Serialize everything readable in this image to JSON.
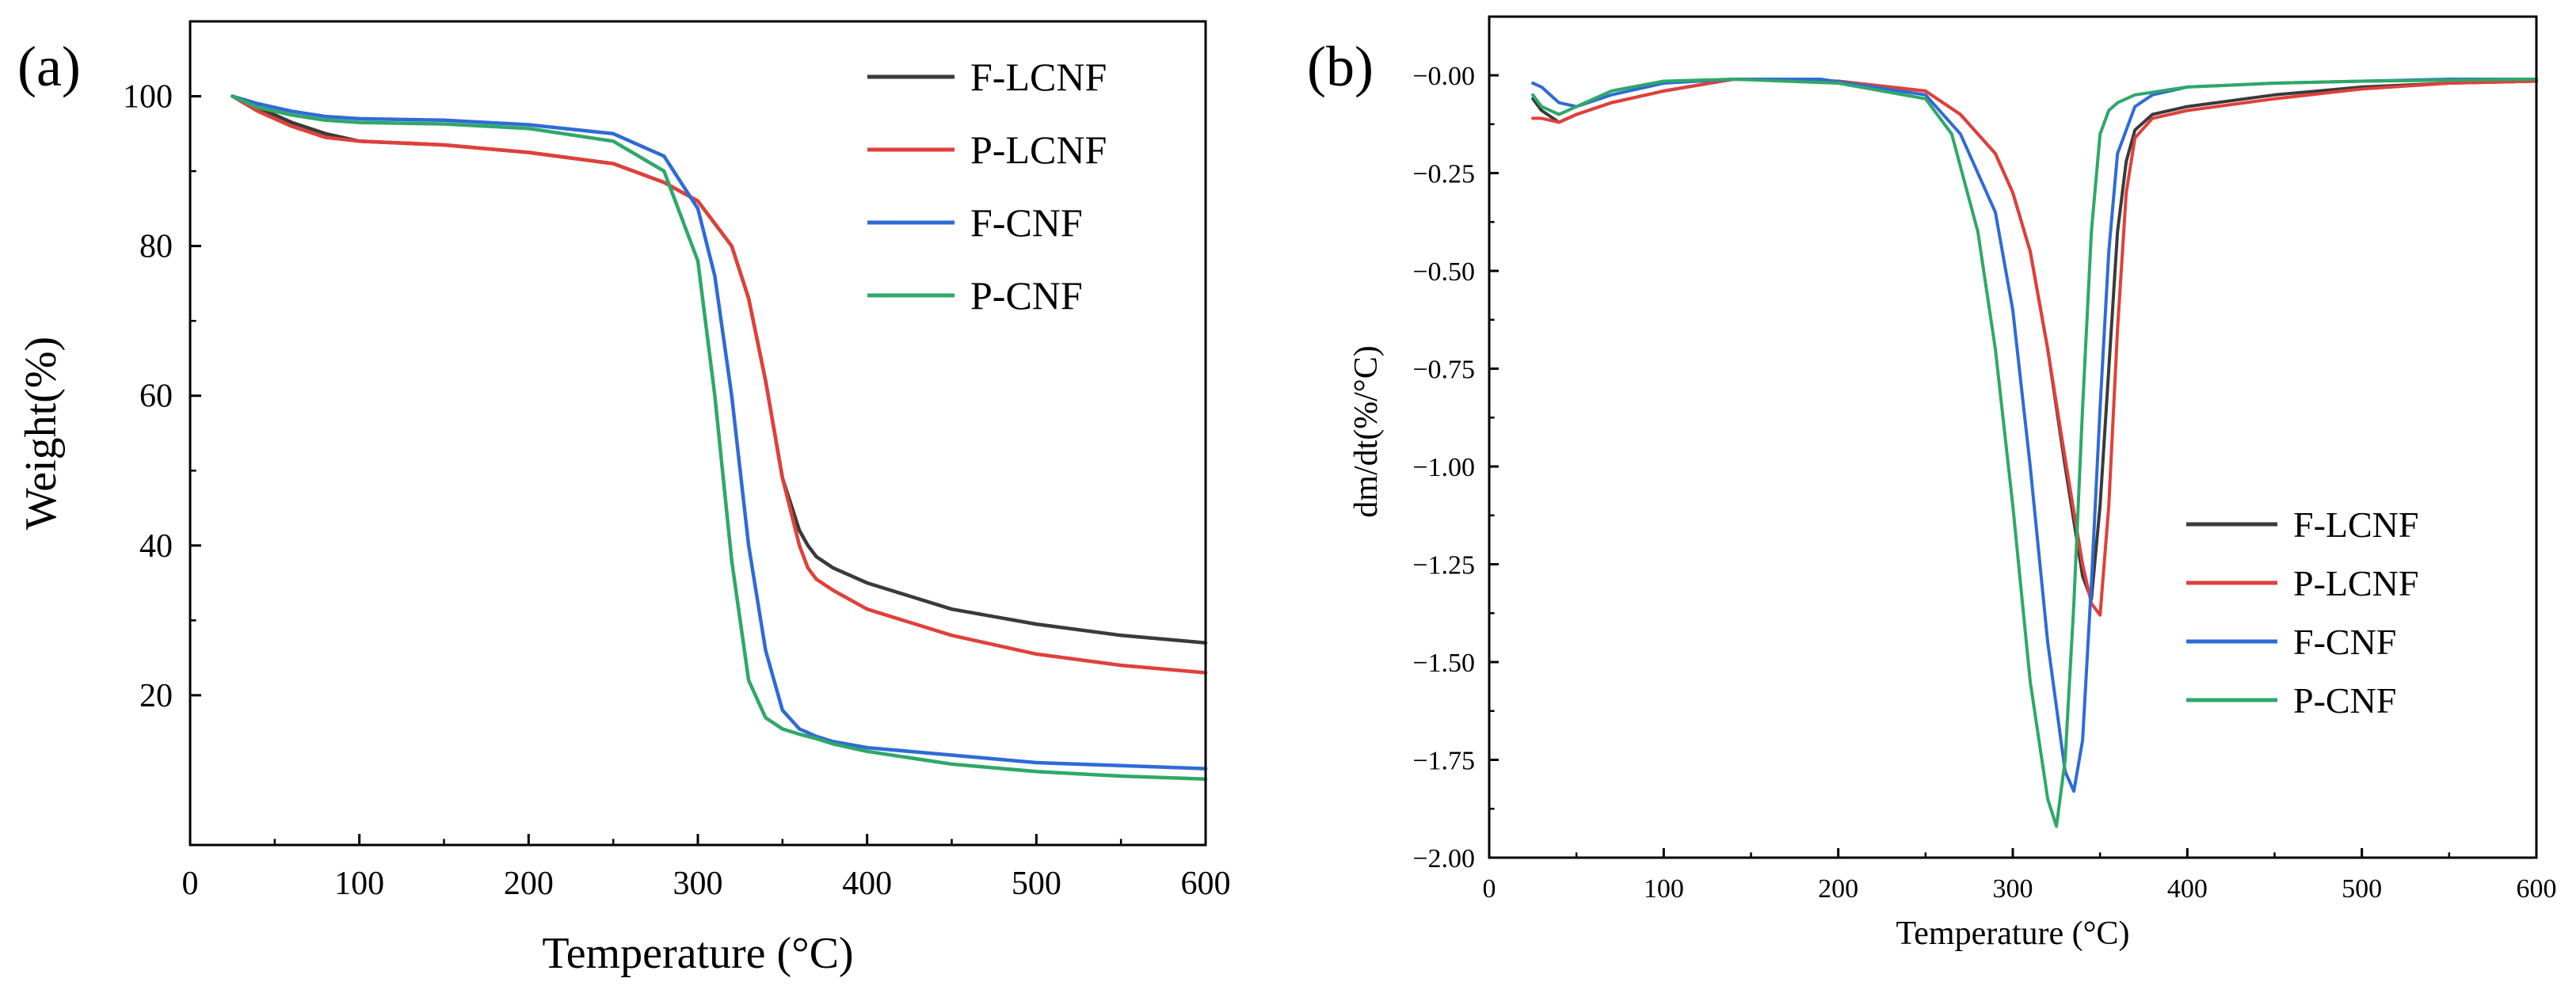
{
  "chart_data": [
    {
      "type": "line",
      "panel_label": "(a)",
      "xlabel": "Temperature (°C)",
      "ylabel": "Weight(%)",
      "xlim": [
        0,
        600
      ],
      "ylim": [
        0,
        110
      ],
      "xticks": [
        0,
        100,
        200,
        300,
        400,
        500,
        600
      ],
      "yticks": [
        20,
        40,
        60,
        80,
        100
      ],
      "legend_position": "top-right",
      "series": [
        {
          "name": "F-LCNF",
          "color": "#3a3a3a",
          "x": [
            25,
            40,
            60,
            80,
            100,
            150,
            200,
            250,
            280,
            300,
            320,
            330,
            340,
            350,
            360,
            365,
            370,
            380,
            400,
            450,
            500,
            550,
            600
          ],
          "y": [
            100,
            98.5,
            96.5,
            95,
            94,
            93.5,
            92.5,
            91,
            88.5,
            86,
            80,
            73,
            62,
            49,
            42,
            40,
            38.5,
            37,
            35,
            31.5,
            29.5,
            28,
            27
          ]
        },
        {
          "name": "P-LCNF",
          "color": "#e0403a",
          "x": [
            25,
            40,
            60,
            80,
            100,
            150,
            200,
            250,
            280,
            300,
            320,
            330,
            340,
            350,
            360,
            365,
            370,
            380,
            400,
            450,
            500,
            550,
            600
          ],
          "y": [
            100,
            98,
            96,
            94.5,
            94,
            93.5,
            92.5,
            91,
            88.5,
            86,
            80,
            73,
            62,
            49,
            40,
            37,
            35.5,
            34,
            31.5,
            28,
            25.5,
            24,
            23
          ]
        },
        {
          "name": "F-CNF",
          "color": "#2f6bd6",
          "x": [
            25,
            40,
            60,
            80,
            100,
            150,
            200,
            250,
            280,
            300,
            310,
            320,
            330,
            340,
            350,
            360,
            370,
            380,
            400,
            450,
            500,
            550,
            600
          ],
          "y": [
            100,
            99,
            98,
            97.3,
            97,
            96.8,
            96.2,
            95,
            92,
            85,
            76,
            60,
            40,
            26,
            18,
            15.5,
            14.5,
            13.8,
            13,
            12,
            11,
            10.6,
            10.2
          ]
        },
        {
          "name": "P-CNF",
          "color": "#2ea868",
          "x": [
            25,
            40,
            60,
            80,
            100,
            150,
            200,
            250,
            280,
            300,
            310,
            320,
            330,
            340,
            350,
            360,
            370,
            380,
            400,
            450,
            500,
            550,
            600
          ],
          "y": [
            100,
            98.5,
            97.5,
            96.8,
            96.5,
            96.3,
            95.7,
            94,
            90,
            78,
            60,
            38,
            22,
            17,
            15.5,
            14.8,
            14.2,
            13.5,
            12.5,
            10.8,
            9.8,
            9.2,
            8.8
          ]
        }
      ]
    },
    {
      "type": "line",
      "panel_label": "(b)",
      "xlabel": "Temperature (°C)",
      "ylabel": "dm/dt(%/°C)",
      "xlim": [
        0,
        600
      ],
      "ylim": [
        -2.0,
        0.15
      ],
      "xticks": [
        0,
        100,
        200,
        300,
        400,
        500,
        600
      ],
      "yticks": [
        0.0,
        -0.25,
        -0.5,
        -0.75,
        -1.0,
        -1.25,
        -1.5,
        -1.75,
        -2.0
      ],
      "ytick_labels": [
        "-0.00",
        "-0.25",
        "-0.50",
        "-0.75",
        "-1.00",
        "-1.25",
        "-1.50",
        "-1.75",
        "-2.00"
      ],
      "legend_position": "bottom-right",
      "series": [
        {
          "name": "F-LCNF",
          "color": "#3a3a3a",
          "x": [
            25,
            30,
            40,
            50,
            70,
            100,
            140,
            200,
            250,
            270,
            290,
            300,
            310,
            320,
            330,
            340,
            345,
            350,
            355,
            360,
            365,
            370,
            380,
            400,
            450,
            500,
            550,
            600
          ],
          "y": [
            -0.06,
            -0.09,
            -0.12,
            -0.1,
            -0.07,
            -0.04,
            -0.01,
            -0.015,
            -0.04,
            -0.1,
            -0.2,
            -0.3,
            -0.45,
            -0.7,
            -1.0,
            -1.28,
            -1.34,
            -1.1,
            -0.75,
            -0.4,
            -0.22,
            -0.14,
            -0.1,
            -0.08,
            -0.05,
            -0.03,
            -0.02,
            -0.015
          ]
        },
        {
          "name": "P-LCNF",
          "color": "#e0403a",
          "x": [
            25,
            30,
            40,
            50,
            70,
            100,
            140,
            200,
            250,
            270,
            290,
            300,
            310,
            320,
            330,
            340,
            345,
            350,
            355,
            360,
            365,
            370,
            380,
            400,
            450,
            500,
            550,
            600
          ],
          "y": [
            -0.11,
            -0.11,
            -0.12,
            -0.1,
            -0.07,
            -0.04,
            -0.01,
            -0.015,
            -0.04,
            -0.1,
            -0.2,
            -0.3,
            -0.45,
            -0.7,
            -0.98,
            -1.25,
            -1.35,
            -1.38,
            -1.1,
            -0.65,
            -0.3,
            -0.16,
            -0.11,
            -0.09,
            -0.06,
            -0.035,
            -0.02,
            -0.015
          ]
        },
        {
          "name": "F-CNF",
          "color": "#2f6bd6",
          "x": [
            25,
            30,
            40,
            50,
            70,
            100,
            140,
            190,
            250,
            270,
            290,
            300,
            310,
            320,
            330,
            335,
            340,
            345,
            350,
            355,
            360,
            370,
            380,
            400,
            450,
            500,
            550,
            600
          ],
          "y": [
            -0.02,
            -0.03,
            -0.07,
            -0.08,
            -0.05,
            -0.02,
            -0.01,
            -0.01,
            -0.05,
            -0.15,
            -0.35,
            -0.6,
            -1.0,
            -1.45,
            -1.78,
            -1.83,
            -1.7,
            -1.3,
            -0.85,
            -0.45,
            -0.2,
            -0.08,
            -0.05,
            -0.03,
            -0.02,
            -0.015,
            -0.01,
            -0.01
          ]
        },
        {
          "name": "P-CNF",
          "color": "#2ea868",
          "x": [
            25,
            30,
            40,
            50,
            70,
            100,
            140,
            200,
            250,
            265,
            280,
            290,
            300,
            310,
            320,
            325,
            330,
            335,
            340,
            345,
            350,
            355,
            360,
            370,
            400,
            450,
            500,
            600
          ],
          "y": [
            -0.05,
            -0.08,
            -0.1,
            -0.08,
            -0.04,
            -0.015,
            -0.01,
            -0.02,
            -0.06,
            -0.15,
            -0.4,
            -0.7,
            -1.1,
            -1.55,
            -1.85,
            -1.92,
            -1.75,
            -1.35,
            -0.85,
            -0.4,
            -0.15,
            -0.09,
            -0.07,
            -0.05,
            -0.03,
            -0.02,
            -0.015,
            -0.01
          ]
        }
      ]
    }
  ]
}
